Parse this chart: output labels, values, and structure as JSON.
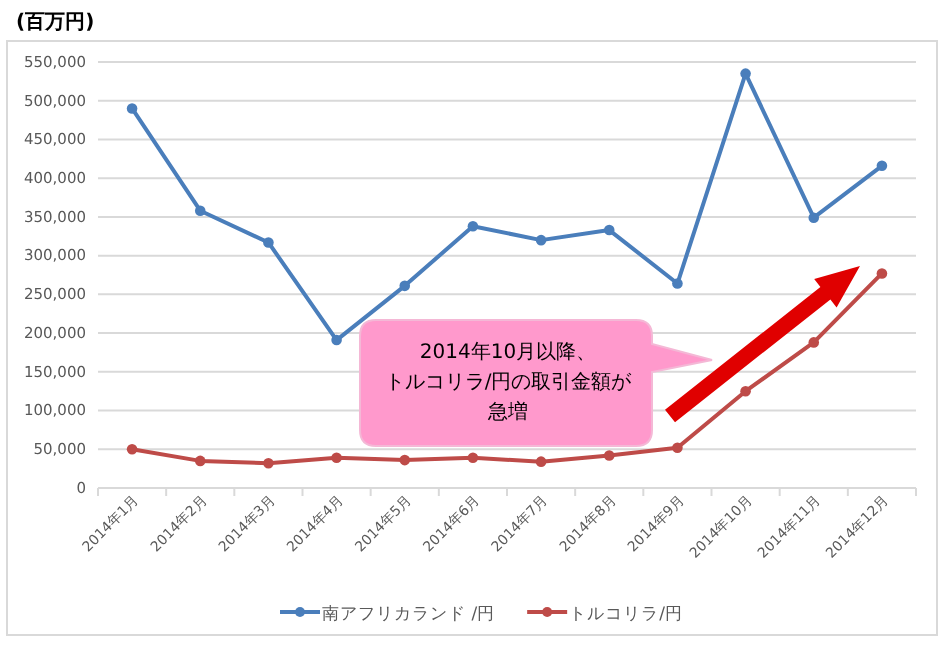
{
  "chart_data": {
    "type": "line",
    "ylabel": "(百万円)",
    "categories": [
      "2014年1月",
      "2014年2月",
      "2014年3月",
      "2014年4月",
      "2014年5月",
      "2014年6月",
      "2014年7月",
      "2014年8月",
      "2014年9月",
      "2014年10月",
      "2014年11月",
      "2014年12月"
    ],
    "series": [
      {
        "name": "南アフリカランド /円",
        "color": "#4a7ebb",
        "values": [
          490000,
          358000,
          317000,
          191000,
          261000,
          338000,
          320000,
          333000,
          264000,
          535000,
          349000,
          416000
        ]
      },
      {
        "name": "トルコリラ/円",
        "color": "#be4b48",
        "values": [
          50000,
          35000,
          32000,
          39000,
          36000,
          39000,
          34000,
          42000,
          52000,
          125000,
          188000,
          277000
        ]
      }
    ],
    "ylim": [
      0,
      550000
    ],
    "yticks": [
      {
        "value": 0,
        "label": "0"
      },
      {
        "value": 50000,
        "label": "50,000"
      },
      {
        "value": 100000,
        "label": "100,000"
      },
      {
        "value": 150000,
        "label": "150,000"
      },
      {
        "value": 200000,
        "label": "200,000"
      },
      {
        "value": 250000,
        "label": "250,000"
      },
      {
        "value": 300000,
        "label": "300,000"
      },
      {
        "value": 350000,
        "label": "350,000"
      },
      {
        "value": 400000,
        "label": "400,000"
      },
      {
        "value": 450000,
        "label": "450,000"
      },
      {
        "value": 500000,
        "label": "500,000"
      },
      {
        "value": 550000,
        "label": "550,000"
      }
    ],
    "grid": "y",
    "legend": "bottom",
    "marker": "circle",
    "line_style": "solid",
    "annotations": [
      "2014年10月以降、トルコリラ/円の取引金額が急増"
    ]
  }
}
